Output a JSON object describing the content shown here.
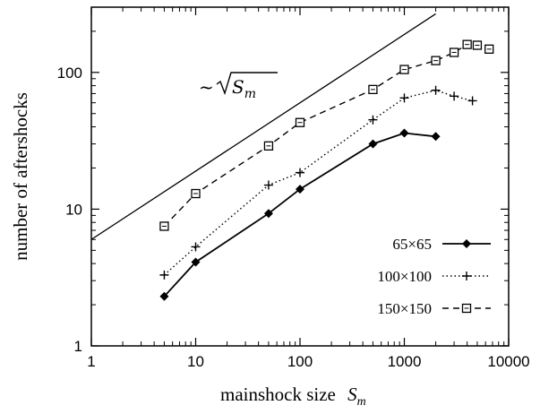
{
  "chart_data": {
    "type": "line",
    "xscale": "log",
    "yscale": "log",
    "xlim": [
      1,
      10000
    ],
    "ylim": [
      1,
      300
    ],
    "xticks": [
      {
        "value": 1,
        "label": "1"
      },
      {
        "value": 10,
        "label": "10"
      },
      {
        "value": 100,
        "label": "100"
      },
      {
        "value": 1000,
        "label": "1000"
      },
      {
        "value": 10000,
        "label": "10000"
      }
    ],
    "yticks": [
      {
        "value": 1,
        "label": "1"
      },
      {
        "value": 10,
        "label": "10"
      },
      {
        "value": 100,
        "label": "100"
      }
    ],
    "xlabel": "mainshock size",
    "xlabel_symbol": "S",
    "xlabel_symbol_sub": "m",
    "ylabel": "number of aftershocks",
    "grid": false,
    "legend_position": "bottom-right",
    "annotation": {
      "prefix": "~",
      "symbol": "S",
      "sub": "m"
    },
    "reference_line": {
      "name": "~ sqrt(S_m)",
      "x": [
        1,
        2000
      ],
      "y": [
        6,
        268
      ]
    },
    "series": [
      {
        "name": "65×65",
        "style": "solid",
        "marker": "diamond",
        "color": "#000000",
        "x": [
          5,
          10,
          50,
          100,
          500,
          1000,
          2000
        ],
        "y": [
          2.3,
          4.1,
          9.3,
          14,
          30,
          36,
          34
        ]
      },
      {
        "name": "100×100",
        "style": "dotted",
        "marker": "plus",
        "color": "#000000",
        "x": [
          5,
          10,
          50,
          100,
          500,
          1000,
          2000,
          3000,
          4500
        ],
        "y": [
          3.3,
          5.3,
          15,
          18.5,
          45,
          65,
          74,
          67,
          62
        ]
      },
      {
        "name": "150×150",
        "style": "dashed",
        "marker": "square",
        "color": "#000000",
        "x": [
          5,
          10,
          50,
          100,
          500,
          1000,
          2000,
          3000,
          4000,
          5000,
          6500
        ],
        "y": [
          7.5,
          13,
          29,
          43,
          75,
          105,
          122,
          140,
          160,
          158,
          148
        ]
      }
    ]
  }
}
